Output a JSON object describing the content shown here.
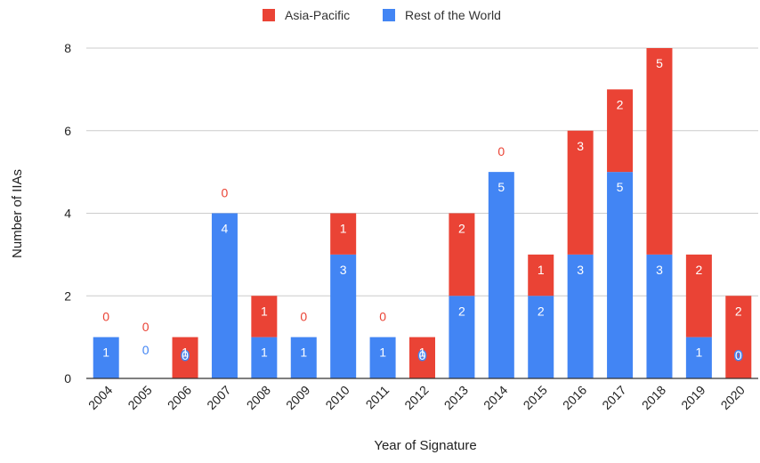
{
  "chart_data": {
    "type": "bar",
    "stacked": true,
    "title": "",
    "xlabel": "Year of Signature",
    "ylabel": "Number of IIAs",
    "ylim": [
      0,
      8
    ],
    "yticks": [
      0,
      2,
      4,
      6,
      8
    ],
    "grid": true,
    "legend_position": "top-center",
    "categories": [
      "2004",
      "2005",
      "2006",
      "2007",
      "2008",
      "2009",
      "2010",
      "2011",
      "2012",
      "2013",
      "2014",
      "2015",
      "2016",
      "2017",
      "2018",
      "2019",
      "2020"
    ],
    "series": [
      {
        "name": "Rest of the World",
        "color": "#4285f4",
        "values": [
          1,
          0,
          0,
          4,
          1,
          1,
          3,
          1,
          0,
          2,
          5,
          2,
          3,
          5,
          3,
          1,
          0
        ]
      },
      {
        "name": "Asia-Pacific",
        "color": "#ea4335",
        "values": [
          0,
          0,
          1,
          0,
          1,
          0,
          1,
          0,
          1,
          2,
          0,
          1,
          3,
          2,
          5,
          2,
          2
        ]
      }
    ],
    "legend_order": [
      "Asia-Pacific",
      "Rest of the World"
    ]
  }
}
